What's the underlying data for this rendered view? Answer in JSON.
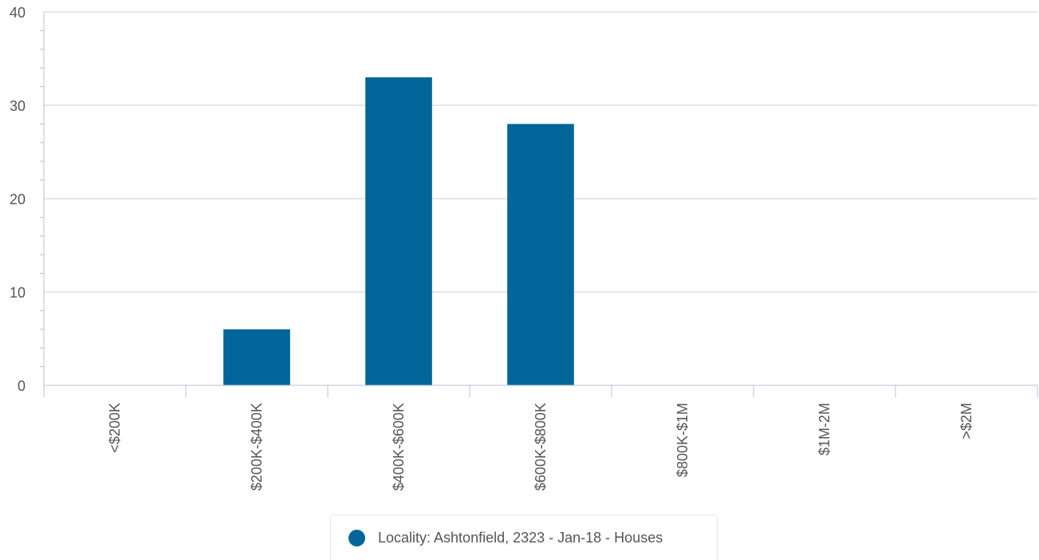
{
  "chart_data": {
    "type": "bar",
    "categories": [
      "<$200K",
      "$200K-$400K",
      "$400K-$600K",
      "$600K-$800K",
      "$800K-$1M",
      "$1M-2M",
      ">$2M"
    ],
    "series": [
      {
        "name": "Locality: Ashtonfield, 2323 - Jan-18 - Houses",
        "values": [
          0,
          6,
          33,
          28,
          0,
          0,
          0
        ]
      }
    ],
    "ylim": [
      0,
      40
    ],
    "yticks": [
      0,
      10,
      20,
      30,
      40
    ],
    "grid": true,
    "legend": "bottom-center",
    "colors": {
      "bar": "#006699",
      "grid": "#cccccc",
      "axis": "#b7c2d3",
      "text": "#555555"
    }
  }
}
